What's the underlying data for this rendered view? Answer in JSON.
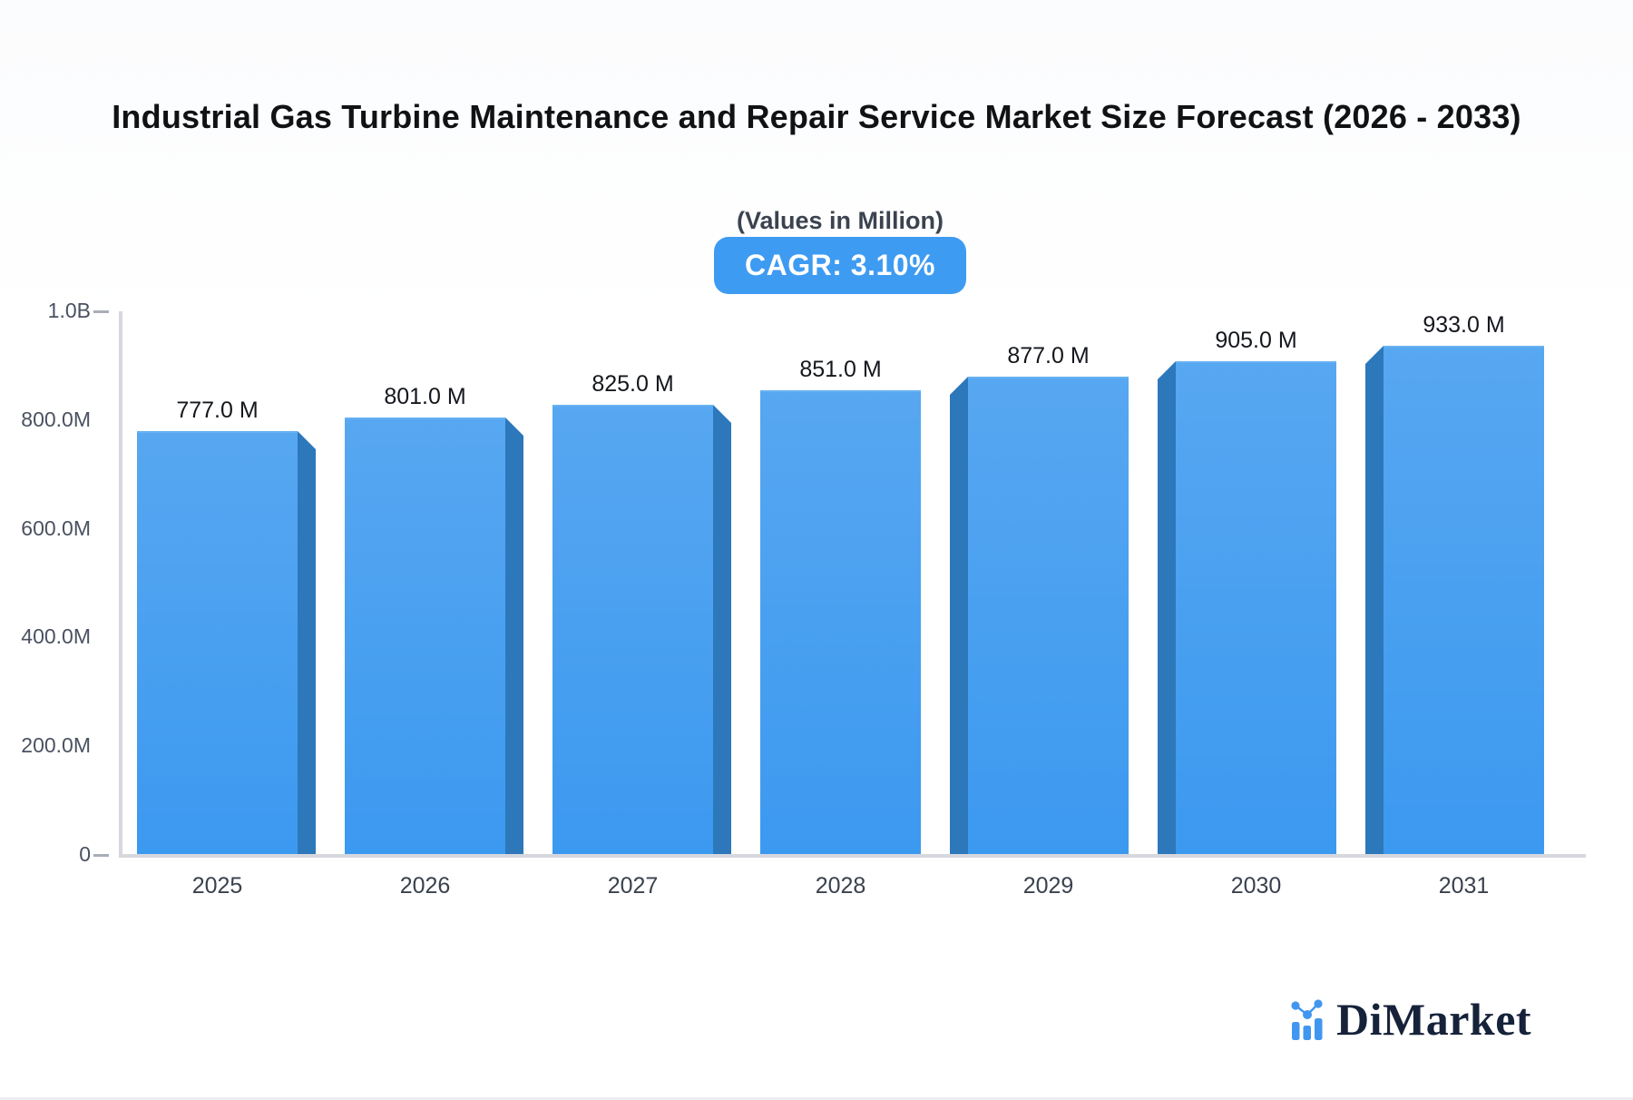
{
  "page": {
    "title": "Industrial Gas Turbine Maintenance and Repair Service Market Size Forecast (2026 - 2033)",
    "subtitle": "(Values in Million)",
    "cagr_badge": "CAGR: 3.10%",
    "brand": "DiMarket"
  },
  "chart_data": {
    "type": "bar",
    "title": "Industrial Gas Turbine Maintenance and Repair Service Market Size Forecast (2026 - 2033)",
    "subtitle": "(Values in Million)",
    "cagr_percent": "3.10%",
    "categories": [
      "2025",
      "2026",
      "2027",
      "2028",
      "2029",
      "2030",
      "2031"
    ],
    "values_millions": [
      777,
      801,
      825,
      851,
      877,
      905,
      933
    ],
    "value_labels": [
      "777.0 M",
      "801.0 M",
      "825.0 M",
      "851.0 M",
      "877.0 M",
      "905.0 M",
      "933.0 M"
    ],
    "unit": "Million",
    "y_tick_labels": [
      "1.0B",
      "800.0M",
      "600.0M",
      "400.0M",
      "200.0M",
      "0"
    ],
    "ylim_millions": [
      0,
      1000
    ],
    "grid": "off",
    "legend": "none",
    "colors": {
      "bar_face_top": "#57a7f1",
      "bar_face_bottom": "#3c99f0",
      "bar_side": "#2d78bb",
      "badge_background": "#3e9bf2",
      "badge_text": "#ffffff",
      "axis_line": "#d6d8dd",
      "title_text": "#101214",
      "label_text": "#14171c",
      "brand_blue": "#4196f0",
      "brand_navy": "#16223a"
    }
  }
}
